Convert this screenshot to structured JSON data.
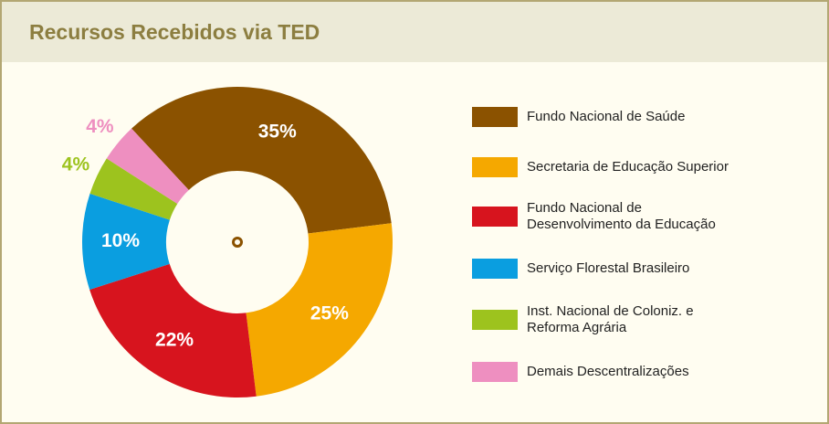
{
  "title": "Recursos Recebidos via TED",
  "chart_data": {
    "type": "donut",
    "categories": [
      "Fundo Nacional de Saúde",
      "Secretaria de Educação Superior",
      "Fundo Nacional de\nDesenvolvimento da Educação",
      "Serviço Florestal Brasileiro",
      "Inst. Nacional de Coloniz. e\nReforma Agrária",
      "Demais Descentralizações"
    ],
    "values": [
      35,
      25,
      22,
      10,
      4,
      4
    ],
    "value_labels": [
      "35%",
      "25%",
      "22%",
      "10%",
      "4%",
      "4%"
    ],
    "colors": [
      "#8b5200",
      "#f5a800",
      "#d7141e",
      "#0a9ee0",
      "#9dc31e",
      "#ee8fc0"
    ],
    "legend": "right"
  }
}
